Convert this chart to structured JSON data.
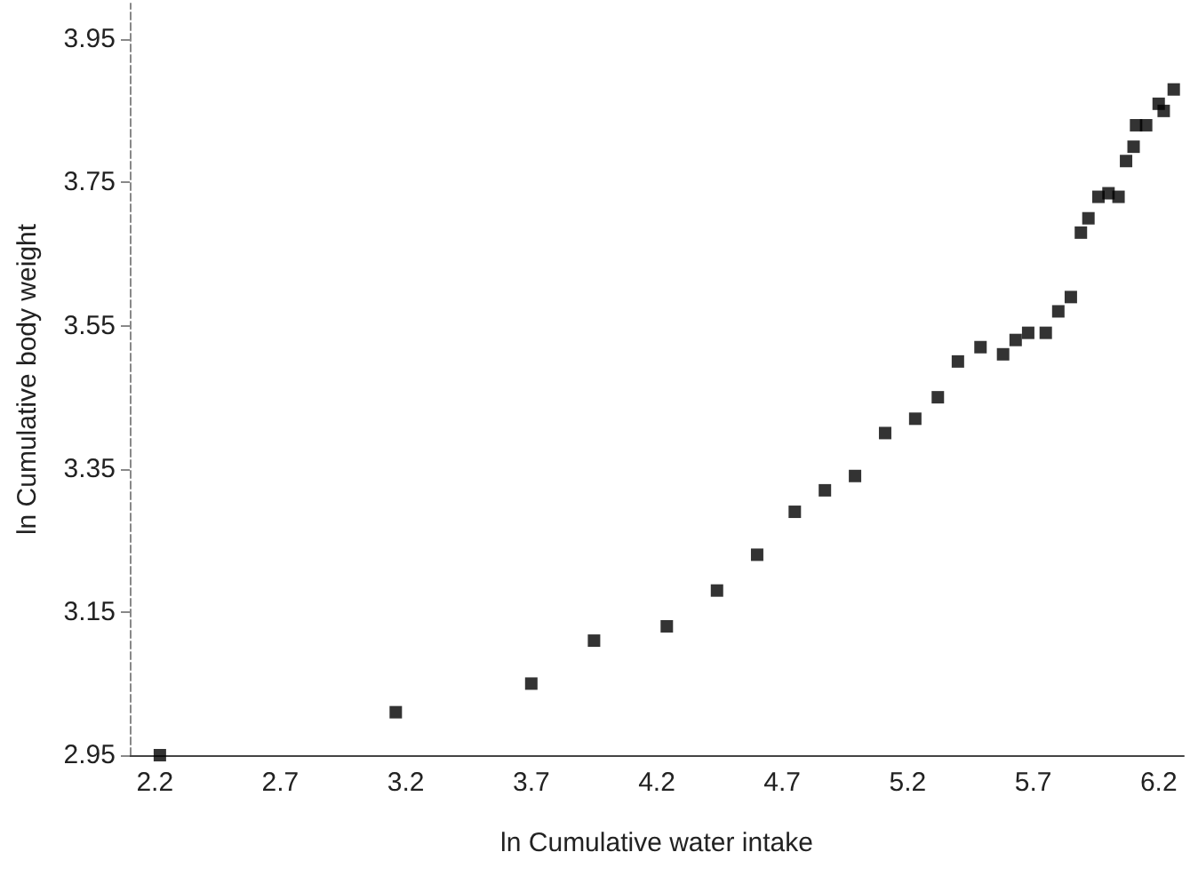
{
  "chart_data": {
    "type": "scatter",
    "xlabel": "ln Cumulative water intake",
    "ylabel": "ln Cumulative body weight",
    "x": [
      2.22,
      3.16,
      3.7,
      3.95,
      4.24,
      4.44,
      4.6,
      4.75,
      4.87,
      4.99,
      5.11,
      5.23,
      5.32,
      5.4,
      5.49,
      5.58,
      5.63,
      5.68,
      5.75,
      5.8,
      5.85,
      5.89,
      5.92,
      5.96,
      6.0,
      6.04,
      6.07,
      6.1,
      6.11,
      6.15,
      6.2,
      6.22,
      6.26
    ],
    "values": [
      2.95,
      3.01,
      3.05,
      3.11,
      3.13,
      3.18,
      3.23,
      3.29,
      3.32,
      3.34,
      3.4,
      3.42,
      3.45,
      3.5,
      3.52,
      3.51,
      3.53,
      3.54,
      3.54,
      3.57,
      3.59,
      3.68,
      3.7,
      3.73,
      3.735,
      3.73,
      3.78,
      3.8,
      3.83,
      3.83,
      3.86,
      3.85,
      3.88
    ],
    "color": "#000000",
    "marker": "square",
    "xlim": [
      2.1,
      6.3
    ],
    "xticks": [
      2.2,
      2.7,
      3.2,
      3.7,
      4.2,
      4.7,
      5.2,
      5.7,
      6.2
    ],
    "ylim": [
      2.95,
      4.0
    ],
    "yticks": [
      2.95,
      3.15,
      3.35,
      3.55,
      3.75,
      3.95
    ],
    "grid": false
  }
}
